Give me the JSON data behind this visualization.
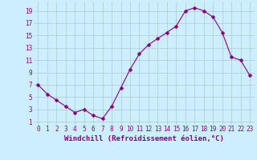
{
  "x": [
    0,
    1,
    2,
    3,
    4,
    5,
    6,
    7,
    8,
    9,
    10,
    11,
    12,
    13,
    14,
    15,
    16,
    17,
    18,
    19,
    20,
    21,
    22,
    23
  ],
  "y": [
    7,
    5.5,
    4.5,
    3.5,
    2.5,
    3,
    2,
    1.5,
    3.5,
    6.5,
    9.5,
    12,
    13.5,
    14.5,
    15.5,
    16.5,
    19,
    19.5,
    19,
    18,
    15.5,
    11.5,
    11,
    8.5
  ],
  "line_color": "#880088",
  "marker_color": "#880088",
  "bg_color": "#cceeff",
  "grid_color": "#aacccc",
  "xlabel": "Windchill (Refroidissement éolien,°C)",
  "ylabel_ticks": [
    1,
    3,
    5,
    7,
    9,
    11,
    13,
    15,
    17,
    19
  ],
  "xticks": [
    0,
    1,
    2,
    3,
    4,
    5,
    6,
    7,
    8,
    9,
    10,
    11,
    12,
    13,
    14,
    15,
    16,
    17,
    18,
    19,
    20,
    21,
    22,
    23
  ],
  "ylim": [
    0.5,
    20.5
  ],
  "xlim": [
    -0.5,
    23.5
  ],
  "xlabel_color": "#880088",
  "tick_color": "#880088",
  "tick_fontsize": 5.5,
  "xlabel_fontsize": 6.5,
  "marker_size": 2.5,
  "linewidth": 0.8
}
